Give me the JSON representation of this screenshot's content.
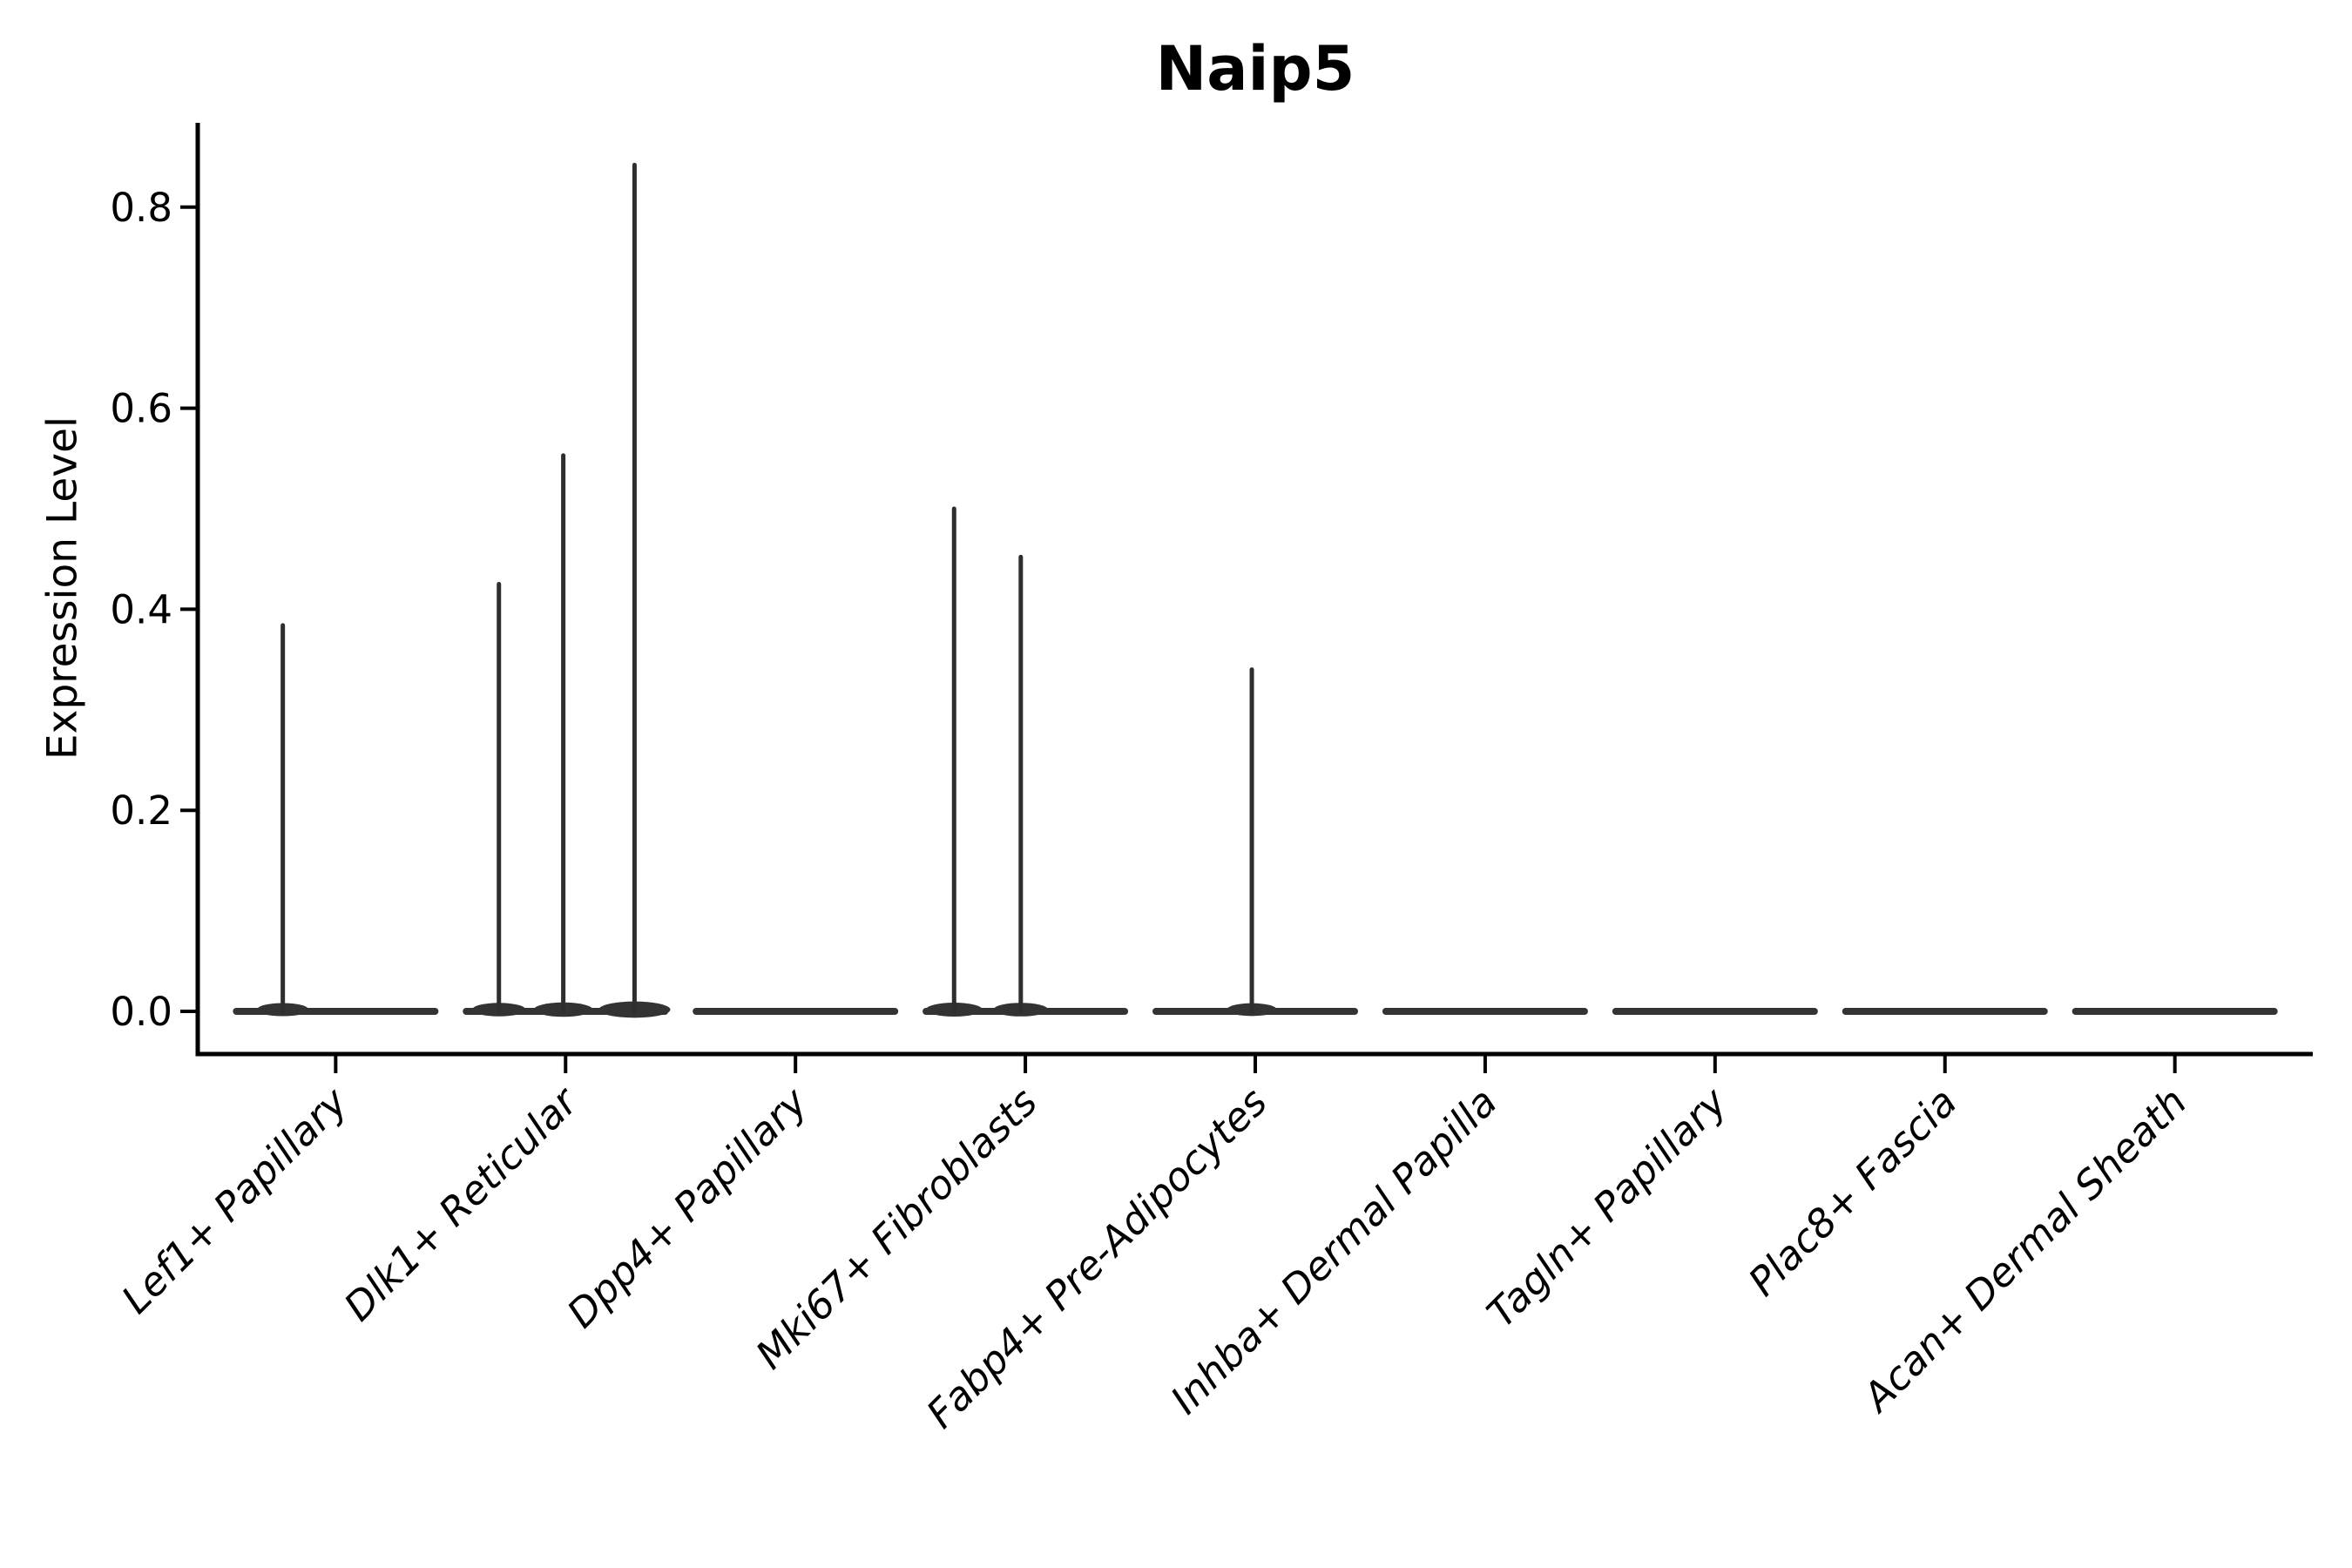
{
  "chart_data": {
    "type": "violin",
    "title": "Naip5",
    "ylabel": "Expression Level",
    "xlabel": "",
    "grid": false,
    "legend": false,
    "background": "#ffffff",
    "yticks": [
      {
        "label": "0.0",
        "value": 0.0
      },
      {
        "label": "0.2",
        "value": 0.2
      },
      {
        "label": "0.4",
        "value": 0.4
      },
      {
        "label": "0.6",
        "value": 0.6
      },
      {
        "label": "0.8",
        "value": 0.8
      }
    ],
    "ylim": [
      -0.042,
      0.884
    ],
    "xtick_rotation": 45,
    "xtick_style": "italic",
    "categories": [
      "Lef1+ Papillary",
      "Dlk1+ Reticular",
      "Dpp4+ Papillary",
      "Mki67+ Fibroblasts",
      "Fabp4+ Pre-Adipocytes",
      "Inhba+ Dermal Papilla",
      "Tagln+ Papillary",
      "Plac8+ Fascia",
      "Acan+ Dermal Sheath"
    ],
    "violins": [
      {
        "category": "Lef1+ Papillary",
        "baseline_value": 0.0,
        "spikes": [
          {
            "value": 0.384,
            "offset": -0.23
          }
        ]
      },
      {
        "category": "Dlk1+ Reticular",
        "baseline_value": 0.0,
        "spikes": [
          {
            "value": 0.425,
            "offset": -0.29
          },
          {
            "value": 0.553,
            "offset": -0.01
          },
          {
            "value": 0.842,
            "offset": 0.3
          }
        ]
      },
      {
        "category": "Dpp4+ Papillary",
        "baseline_value": 0.0,
        "spikes": []
      },
      {
        "category": "Mki67+ Fibroblasts",
        "baseline_value": 0.0,
        "spikes": [
          {
            "value": 0.5,
            "offset": -0.31
          },
          {
            "value": 0.452,
            "offset": -0.02
          }
        ]
      },
      {
        "category": "Fabp4+ Pre-Adipocytes",
        "baseline_value": 0.0,
        "spikes": [
          {
            "value": 0.34,
            "offset": -0.015
          }
        ]
      },
      {
        "category": "Inhba+ Dermal Papilla",
        "baseline_value": 0.0,
        "spikes": []
      },
      {
        "category": "Tagln+ Papillary",
        "baseline_value": 0.0,
        "spikes": []
      },
      {
        "category": "Plac8+ Fascia",
        "baseline_value": 0.0,
        "spikes": []
      },
      {
        "category": "Acan+ Dermal Sheath",
        "baseline_value": 0.0,
        "spikes": []
      }
    ],
    "colors": {
      "violin_body": "#333333",
      "violin_spike": "#2e2e2e",
      "axis": "#000000",
      "text": "#000000"
    }
  }
}
